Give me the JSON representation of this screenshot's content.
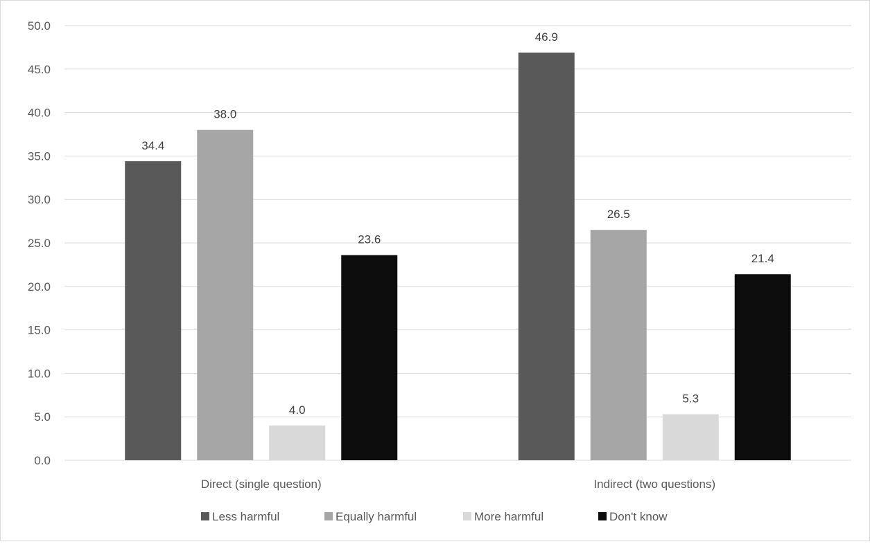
{
  "chart_data": {
    "type": "bar",
    "title": "",
    "xlabel": "",
    "ylabel": "",
    "categories": [
      "Direct (single question)",
      "Indirect (two questions)"
    ],
    "series": [
      {
        "name": "Less harmful",
        "values": [
          34.4,
          46.9
        ],
        "color": "#595959"
      },
      {
        "name": "Equally harmful",
        "values": [
          38.0,
          26.5
        ],
        "color": "#a6a6a6"
      },
      {
        "name": "More harmful",
        "values": [
          4.0,
          5.3
        ],
        "color": "#d9d9d9"
      },
      {
        "name": "Don't know",
        "values": [
          23.6,
          21.4
        ],
        "color": "#0d0d0d"
      }
    ],
    "ylim": [
      0,
      50
    ],
    "yticks": [
      "0.0",
      "5.0",
      "10.0",
      "15.0",
      "20.0",
      "25.0",
      "30.0",
      "35.0",
      "40.0",
      "45.0",
      "50.0"
    ],
    "data_labels": [
      [
        "34.4",
        "46.9"
      ],
      [
        "38.0",
        "26.5"
      ],
      [
        "4.0",
        "5.3"
      ],
      [
        "23.6",
        "21.4"
      ]
    ],
    "grid": true,
    "legend_position": "bottom"
  }
}
